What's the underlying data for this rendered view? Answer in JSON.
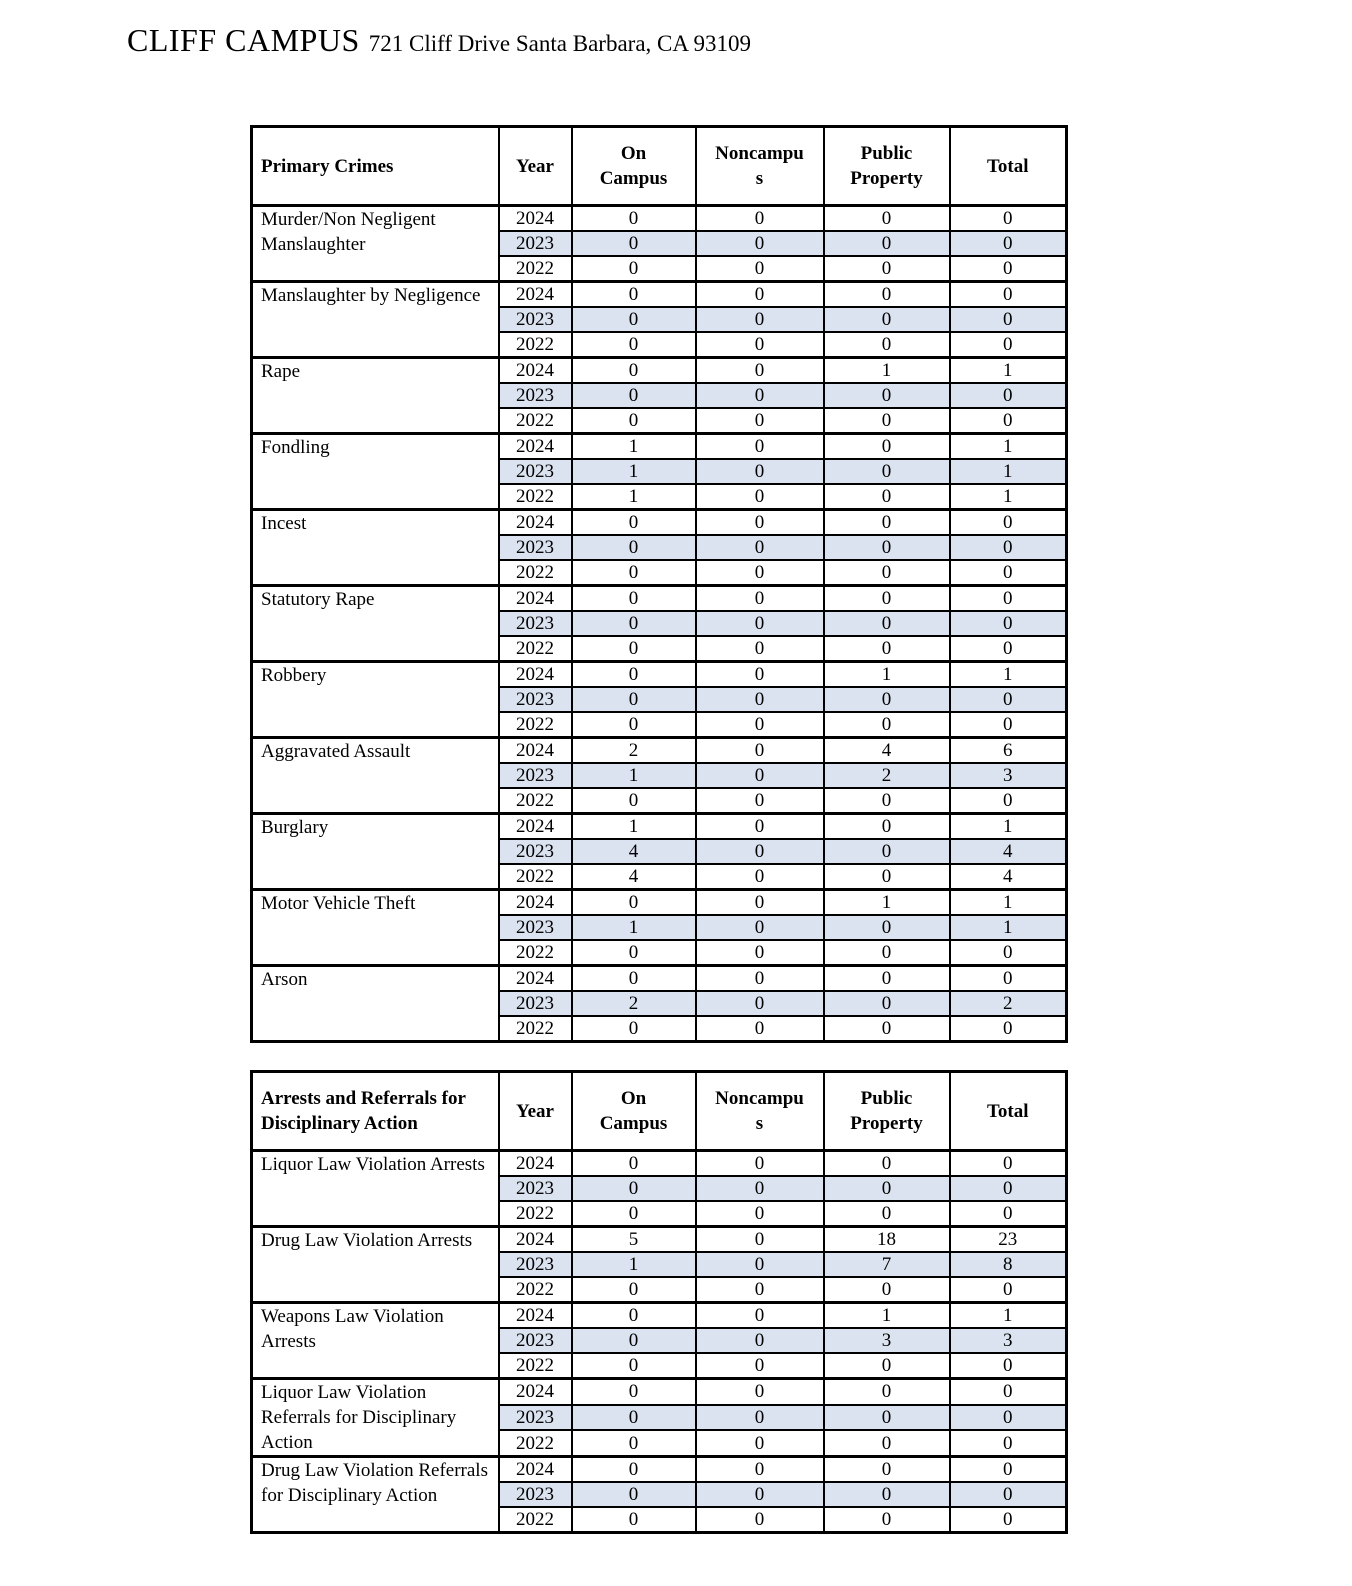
{
  "page": {
    "title": "CLIFF CAMPUS",
    "subtitle": "721 Cliff Drive Santa Barbara, CA 93109"
  },
  "colors": {
    "row_shading": "#dbe3f0",
    "border": "#000000"
  },
  "columns": {
    "year": "Year",
    "on_campus": "On Campus",
    "noncampus": "Noncampus",
    "public_property": "Public Property",
    "total": "Total"
  },
  "tables": [
    {
      "title": "Primary Crimes",
      "groups": [
        {
          "name": "Murder/Non Negligent Manslaughter",
          "rows": [
            {
              "year": "2024",
              "on_campus": "0",
              "noncampus": "0",
              "public_property": "0",
              "total": "0"
            },
            {
              "year": "2023",
              "on_campus": "0",
              "noncampus": "0",
              "public_property": "0",
              "total": "0"
            },
            {
              "year": "2022",
              "on_campus": "0",
              "noncampus": "0",
              "public_property": "0",
              "total": "0"
            }
          ]
        },
        {
          "name": "Manslaughter by Negligence",
          "rows": [
            {
              "year": "2024",
              "on_campus": "0",
              "noncampus": "0",
              "public_property": "0",
              "total": "0"
            },
            {
              "year": "2023",
              "on_campus": "0",
              "noncampus": "0",
              "public_property": "0",
              "total": "0"
            },
            {
              "year": "2022",
              "on_campus": "0",
              "noncampus": "0",
              "public_property": "0",
              "total": "0"
            }
          ]
        },
        {
          "name": "Rape",
          "rows": [
            {
              "year": "2024",
              "on_campus": "0",
              "noncampus": "0",
              "public_property": "1",
              "total": "1"
            },
            {
              "year": "2023",
              "on_campus": "0",
              "noncampus": "0",
              "public_property": "0",
              "total": "0"
            },
            {
              "year": "2022",
              "on_campus": "0",
              "noncampus": "0",
              "public_property": "0",
              "total": "0"
            }
          ]
        },
        {
          "name": "Fondling",
          "rows": [
            {
              "year": "2024",
              "on_campus": "1",
              "noncampus": "0",
              "public_property": "0",
              "total": "1"
            },
            {
              "year": "2023",
              "on_campus": "1",
              "noncampus": "0",
              "public_property": "0",
              "total": "1"
            },
            {
              "year": "2022",
              "on_campus": "1",
              "noncampus": "0",
              "public_property": "0",
              "total": "1"
            }
          ]
        },
        {
          "name": "Incest",
          "rows": [
            {
              "year": "2024",
              "on_campus": "0",
              "noncampus": "0",
              "public_property": "0",
              "total": "0"
            },
            {
              "year": "2023",
              "on_campus": "0",
              "noncampus": "0",
              "public_property": "0",
              "total": "0"
            },
            {
              "year": "2022",
              "on_campus": "0",
              "noncampus": "0",
              "public_property": "0",
              "total": "0"
            }
          ]
        },
        {
          "name": "Statutory Rape",
          "rows": [
            {
              "year": "2024",
              "on_campus": "0",
              "noncampus": "0",
              "public_property": "0",
              "total": "0"
            },
            {
              "year": "2023",
              "on_campus": "0",
              "noncampus": "0",
              "public_property": "0",
              "total": "0"
            },
            {
              "year": "2022",
              "on_campus": "0",
              "noncampus": "0",
              "public_property": "0",
              "total": "0"
            }
          ]
        },
        {
          "name": "Robbery",
          "rows": [
            {
              "year": "2024",
              "on_campus": "0",
              "noncampus": "0",
              "public_property": "1",
              "total": "1"
            },
            {
              "year": "2023",
              "on_campus": "0",
              "noncampus": "0",
              "public_property": "0",
              "total": "0"
            },
            {
              "year": "2022",
              "on_campus": "0",
              "noncampus": "0",
              "public_property": "0",
              "total": "0"
            }
          ]
        },
        {
          "name": "Aggravated Assault",
          "rows": [
            {
              "year": "2024",
              "on_campus": "2",
              "noncampus": "0",
              "public_property": "4",
              "total": "6"
            },
            {
              "year": "2023",
              "on_campus": "1",
              "noncampus": "0",
              "public_property": "2",
              "total": "3"
            },
            {
              "year": "2022",
              "on_campus": "0",
              "noncampus": "0",
              "public_property": "0",
              "total": "0"
            }
          ]
        },
        {
          "name": "Burglary",
          "rows": [
            {
              "year": "2024",
              "on_campus": "1",
              "noncampus": "0",
              "public_property": "0",
              "total": "1"
            },
            {
              "year": "2023",
              "on_campus": "4",
              "noncampus": "0",
              "public_property": "0",
              "total": "4"
            },
            {
              "year": "2022",
              "on_campus": "4",
              "noncampus": "0",
              "public_property": "0",
              "total": "4"
            }
          ]
        },
        {
          "name": "Motor Vehicle Theft",
          "rows": [
            {
              "year": "2024",
              "on_campus": "0",
              "noncampus": "0",
              "public_property": "1",
              "total": "1"
            },
            {
              "year": "2023",
              "on_campus": "1",
              "noncampus": "0",
              "public_property": "0",
              "total": "1"
            },
            {
              "year": "2022",
              "on_campus": "0",
              "noncampus": "0",
              "public_property": "0",
              "total": "0"
            }
          ]
        },
        {
          "name": "Arson",
          "rows": [
            {
              "year": "2024",
              "on_campus": "0",
              "noncampus": "0",
              "public_property": "0",
              "total": "0"
            },
            {
              "year": "2023",
              "on_campus": "2",
              "noncampus": "0",
              "public_property": "0",
              "total": "2"
            },
            {
              "year": "2022",
              "on_campus": "0",
              "noncampus": "0",
              "public_property": "0",
              "total": "0"
            }
          ]
        }
      ]
    },
    {
      "title": "Arrests and Referrals for Disciplinary Action",
      "groups": [
        {
          "name": "Liquor Law Violation Arrests",
          "rows": [
            {
              "year": "2024",
              "on_campus": "0",
              "noncampus": "0",
              "public_property": "0",
              "total": "0"
            },
            {
              "year": "2023",
              "on_campus": "0",
              "noncampus": "0",
              "public_property": "0",
              "total": "0"
            },
            {
              "year": "2022",
              "on_campus": "0",
              "noncampus": "0",
              "public_property": "0",
              "total": "0"
            }
          ]
        },
        {
          "name": "Drug Law Violation Arrests",
          "rows": [
            {
              "year": "2024",
              "on_campus": "5",
              "noncampus": "0",
              "public_property": "18",
              "total": "23"
            },
            {
              "year": "2023",
              "on_campus": "1",
              "noncampus": "0",
              "public_property": "7",
              "total": "8"
            },
            {
              "year": "2022",
              "on_campus": "0",
              "noncampus": "0",
              "public_property": "0",
              "total": "0"
            }
          ]
        },
        {
          "name": "Weapons Law Violation Arrests",
          "rows": [
            {
              "year": "2024",
              "on_campus": "0",
              "noncampus": "0",
              "public_property": "1",
              "total": "1"
            },
            {
              "year": "2023",
              "on_campus": "0",
              "noncampus": "0",
              "public_property": "3",
              "total": "3"
            },
            {
              "year": "2022",
              "on_campus": "0",
              "noncampus": "0",
              "public_property": "0",
              "total": "0"
            }
          ]
        },
        {
          "name": "Liquor Law Violation Referrals for Disciplinary Action",
          "rows": [
            {
              "year": "2024",
              "on_campus": "0",
              "noncampus": "0",
              "public_property": "0",
              "total": "0"
            },
            {
              "year": "2023",
              "on_campus": "0",
              "noncampus": "0",
              "public_property": "0",
              "total": "0"
            },
            {
              "year": "2022",
              "on_campus": "0",
              "noncampus": "0",
              "public_property": "0",
              "total": "0"
            }
          ]
        },
        {
          "name": "Drug Law Violation Referrals for Disciplinary Action",
          "rows": [
            {
              "year": "2024",
              "on_campus": "0",
              "noncampus": "0",
              "public_property": "0",
              "total": "0"
            },
            {
              "year": "2023",
              "on_campus": "0",
              "noncampus": "0",
              "public_property": "0",
              "total": "0"
            },
            {
              "year": "2022",
              "on_campus": "0",
              "noncampus": "0",
              "public_property": "0",
              "total": "0"
            }
          ]
        }
      ]
    }
  ]
}
